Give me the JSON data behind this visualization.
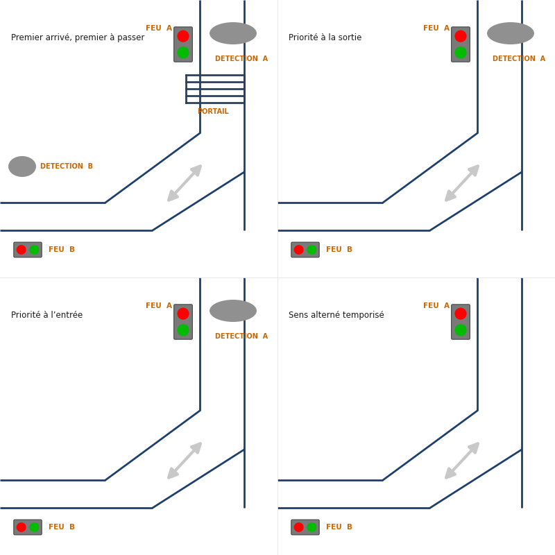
{
  "bg_color": "#ffffff",
  "line_color": "#1e3f6e",
  "line_width": 2.0,
  "tl_body": "#7a7a7a",
  "red": "#ff0000",
  "green": "#00bb00",
  "sensor_color": "#909090",
  "arrow_color": "#c8c8c8",
  "label_color": "#cc6600",
  "text_color": "#1a1a1a",
  "gate_color": "#2a4060",
  "panels": [
    {
      "title": "Premier arrivé, premier à passer",
      "det_a": true,
      "det_b": true,
      "portail": true
    },
    {
      "title": "Priorité à la sortie",
      "det_a": true,
      "det_b": false,
      "portail": false
    },
    {
      "title": "Priorité à l’entrée",
      "det_a": true,
      "det_b": false,
      "portail": false
    },
    {
      "title": "Sens alterné temporisé",
      "det_a": false,
      "det_b": false,
      "portail": false
    }
  ]
}
